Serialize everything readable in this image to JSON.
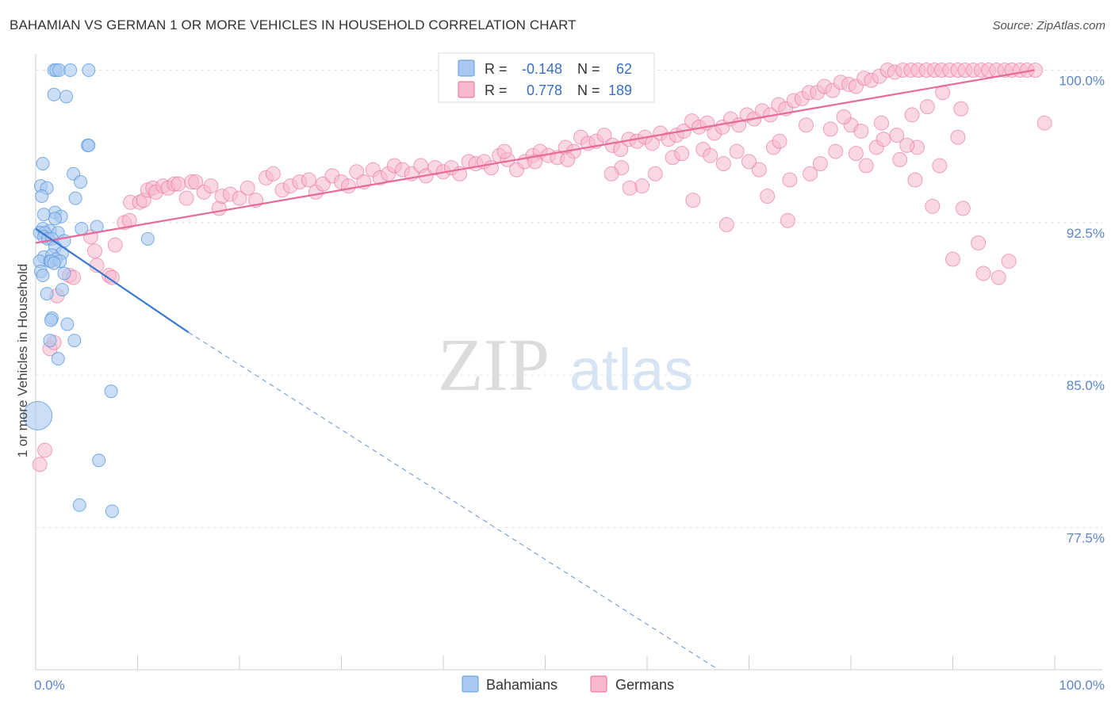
{
  "header": {
    "title": "BAHAMIAN VS GERMAN 1 OR MORE VEHICLES IN HOUSEHOLD CORRELATION CHART",
    "source": "Source: ZipAtlas.com"
  },
  "watermark": {
    "part1": "ZIP",
    "part2": "atlas"
  },
  "stats": [
    {
      "r_label": "R =",
      "r": "-0.148",
      "n_label": "N =",
      "n": "62",
      "color": "#a8c8f0"
    },
    {
      "r_label": "R =",
      "r": "0.778",
      "n_label": "N =",
      "n": "189",
      "color": "#f5b8cc"
    }
  ],
  "chart_data": {
    "type": "scatter",
    "title": "BAHAMIAN VS GERMAN 1 OR MORE VEHICLES IN HOUSEHOLD CORRELATION CHART",
    "xlabel": "",
    "ylabel": "1 or more Vehicles in Household",
    "xlim": [
      0,
      100
    ],
    "ylim": [
      70.5,
      100.8
    ],
    "x_tick_labels": [
      "0.0%",
      "100.0%"
    ],
    "y_ticks": [
      {
        "value": 77.5,
        "label": "77.5%"
      },
      {
        "value": 85.0,
        "label": "85.0%"
      },
      {
        "value": 92.5,
        "label": "92.5%"
      },
      {
        "value": 100.0,
        "label": "100.0%"
      }
    ],
    "grid": true,
    "legend_position": "bottom-center",
    "series": [
      {
        "name": "Bahamians",
        "color": "#5b9be0",
        "fill": "#a8c8f0",
        "trend": {
          "x": [
            0,
            15
          ],
          "y": [
            92.2,
            87.1
          ],
          "dashed_extension_to": [
            67,
            70.5
          ]
        },
        "points": [
          [
            1.8,
            100
          ],
          [
            2.0,
            100
          ],
          [
            2.3,
            100
          ],
          [
            3.4,
            100
          ],
          [
            5.2,
            100
          ],
          [
            1.8,
            98.8
          ],
          [
            3.0,
            98.7
          ],
          [
            5.1,
            96.3
          ],
          [
            5.2,
            96.3
          ],
          [
            0.7,
            95.4
          ],
          [
            3.7,
            94.9
          ],
          [
            4.4,
            94.5
          ],
          [
            0.5,
            94.3
          ],
          [
            1.1,
            94.2
          ],
          [
            0.6,
            93.8
          ],
          [
            3.9,
            93.7
          ],
          [
            1.9,
            93.0
          ],
          [
            2.5,
            92.8
          ],
          [
            0.8,
            92.9
          ],
          [
            1.9,
            92.7
          ],
          [
            6.0,
            92.3
          ],
          [
            4.5,
            92.2
          ],
          [
            0.7,
            92.2
          ],
          [
            1.4,
            92.1
          ],
          [
            0.4,
            92.0
          ],
          [
            0.9,
            92.0
          ],
          [
            2.2,
            92.0
          ],
          [
            0.8,
            91.8
          ],
          [
            1.2,
            91.7
          ],
          [
            2.8,
            91.6
          ],
          [
            1.6,
            91.7
          ],
          [
            11.0,
            91.7
          ],
          [
            1.9,
            91.3
          ],
          [
            2.6,
            91.0
          ],
          [
            0.8,
            90.8
          ],
          [
            1.6,
            90.9
          ],
          [
            0.4,
            90.6
          ],
          [
            1.4,
            90.6
          ],
          [
            2.0,
            90.7
          ],
          [
            1.5,
            90.6
          ],
          [
            2.4,
            90.6
          ],
          [
            1.8,
            90.5
          ],
          [
            0.5,
            90.1
          ],
          [
            2.8,
            90.0
          ],
          [
            0.7,
            89.9
          ],
          [
            2.6,
            89.2
          ],
          [
            1.1,
            89.0
          ],
          [
            1.6,
            87.8
          ],
          [
            1.5,
            87.7
          ],
          [
            3.1,
            87.5
          ],
          [
            1.4,
            86.7
          ],
          [
            3.8,
            86.7
          ],
          [
            2.2,
            85.8
          ],
          [
            7.4,
            84.2
          ],
          [
            0.2,
            83.0
          ],
          [
            6.2,
            80.8
          ],
          [
            4.3,
            78.6
          ],
          [
            7.5,
            78.3
          ]
        ],
        "large_point": [
          0.2,
          83.0
        ]
      },
      {
        "name": "Germans",
        "color": "#e8699a",
        "fill": "#f5b8cc",
        "trend": {
          "x": [
            0,
            98
          ],
          "y": [
            91.5,
            100.0
          ]
        },
        "points": [
          [
            0.4,
            80.6
          ],
          [
            0.9,
            81.3
          ],
          [
            1.4,
            86.3
          ],
          [
            1.8,
            86.6
          ],
          [
            2.1,
            88.9
          ],
          [
            3.3,
            89.9
          ],
          [
            3.7,
            89.8
          ],
          [
            7.2,
            89.9
          ],
          [
            7.5,
            89.8
          ],
          [
            6.0,
            90.4
          ],
          [
            5.8,
            91.1
          ],
          [
            7.8,
            91.4
          ],
          [
            5.4,
            91.8
          ],
          [
            8.7,
            92.5
          ],
          [
            9.2,
            92.6
          ],
          [
            9.3,
            93.5
          ],
          [
            10.2,
            93.5
          ],
          [
            10.6,
            93.6
          ],
          [
            11.0,
            94.1
          ],
          [
            11.5,
            94.2
          ],
          [
            11.8,
            94.0
          ],
          [
            12.5,
            94.3
          ],
          [
            13.0,
            94.2
          ],
          [
            13.6,
            94.4
          ],
          [
            14.0,
            94.4
          ],
          [
            14.8,
            93.7
          ],
          [
            15.3,
            94.5
          ],
          [
            15.7,
            94.5
          ],
          [
            16.5,
            94.0
          ],
          [
            17.2,
            94.3
          ],
          [
            18.0,
            93.2
          ],
          [
            18.3,
            93.8
          ],
          [
            19.1,
            93.9
          ],
          [
            20.0,
            93.7
          ],
          [
            20.8,
            94.2
          ],
          [
            21.6,
            93.6
          ],
          [
            22.6,
            94.7
          ],
          [
            23.3,
            94.9
          ],
          [
            24.2,
            94.1
          ],
          [
            25.0,
            94.3
          ],
          [
            25.9,
            94.5
          ],
          [
            26.8,
            94.6
          ],
          [
            27.5,
            94.0
          ],
          [
            28.2,
            94.4
          ],
          [
            29.1,
            94.8
          ],
          [
            30.0,
            94.5
          ],
          [
            30.7,
            94.3
          ],
          [
            31.5,
            95.0
          ],
          [
            32.2,
            94.5
          ],
          [
            33.1,
            95.1
          ],
          [
            33.8,
            94.7
          ],
          [
            34.6,
            94.9
          ],
          [
            35.2,
            95.3
          ],
          [
            36.0,
            95.1
          ],
          [
            36.9,
            94.9
          ],
          [
            37.8,
            95.3
          ],
          [
            38.3,
            94.8
          ],
          [
            39.2,
            95.2
          ],
          [
            40.0,
            95.0
          ],
          [
            40.8,
            95.2
          ],
          [
            41.6,
            94.9
          ],
          [
            42.5,
            95.5
          ],
          [
            43.2,
            95.4
          ],
          [
            44.0,
            95.5
          ],
          [
            44.7,
            95.2
          ],
          [
            45.5,
            95.8
          ],
          [
            46.3,
            95.6
          ],
          [
            47.2,
            95.1
          ],
          [
            48.0,
            95.5
          ],
          [
            48.8,
            95.8
          ],
          [
            49.5,
            96.0
          ],
          [
            50.3,
            95.8
          ],
          [
            51.2,
            95.7
          ],
          [
            52.0,
            96.2
          ],
          [
            52.8,
            96.0
          ],
          [
            53.5,
            96.7
          ],
          [
            54.2,
            96.4
          ],
          [
            55.0,
            96.5
          ],
          [
            55.8,
            96.8
          ],
          [
            56.6,
            96.3
          ],
          [
            57.4,
            96.1
          ],
          [
            58.2,
            96.6
          ],
          [
            59.0,
            96.5
          ],
          [
            59.8,
            96.7
          ],
          [
            60.5,
            96.4
          ],
          [
            61.3,
            96.9
          ],
          [
            62.1,
            96.6
          ],
          [
            62.9,
            96.8
          ],
          [
            63.6,
            97.0
          ],
          [
            64.4,
            97.5
          ],
          [
            65.1,
            97.2
          ],
          [
            65.9,
            97.4
          ],
          [
            66.6,
            96.9
          ],
          [
            67.4,
            97.2
          ],
          [
            68.2,
            97.6
          ],
          [
            69.0,
            97.3
          ],
          [
            69.8,
            97.8
          ],
          [
            70.5,
            97.6
          ],
          [
            71.3,
            98.0
          ],
          [
            72.1,
            97.8
          ],
          [
            72.9,
            98.3
          ],
          [
            73.6,
            98.1
          ],
          [
            74.4,
            98.5
          ],
          [
            75.2,
            98.6
          ],
          [
            75.9,
            98.9
          ],
          [
            76.7,
            98.9
          ],
          [
            77.4,
            99.2
          ],
          [
            78.2,
            99.0
          ],
          [
            79.0,
            99.4
          ],
          [
            79.8,
            99.3
          ],
          [
            80.5,
            99.2
          ],
          [
            81.3,
            99.6
          ],
          [
            82.0,
            99.5
          ],
          [
            82.8,
            99.7
          ],
          [
            83.6,
            100
          ],
          [
            84.3,
            99.9
          ],
          [
            85.1,
            100
          ],
          [
            85.9,
            100
          ],
          [
            86.6,
            100
          ],
          [
            87.4,
            100
          ],
          [
            88.2,
            100
          ],
          [
            88.9,
            100
          ],
          [
            89.7,
            100
          ],
          [
            90.5,
            100
          ],
          [
            91.2,
            100
          ],
          [
            92.0,
            100
          ],
          [
            92.8,
            100
          ],
          [
            93.5,
            100
          ],
          [
            94.3,
            100
          ],
          [
            95.1,
            100
          ],
          [
            95.8,
            100
          ],
          [
            96.6,
            100
          ],
          [
            97.3,
            100
          ],
          [
            98.1,
            100
          ],
          [
            99.0,
            97.4
          ],
          [
            78.5,
            96.0
          ],
          [
            80.5,
            95.9
          ],
          [
            81.5,
            95.3
          ],
          [
            82.5,
            96.2
          ],
          [
            84.5,
            96.8
          ],
          [
            86.5,
            96.2
          ],
          [
            90.5,
            96.7
          ],
          [
            91.0,
            93.2
          ],
          [
            88.0,
            93.3
          ],
          [
            85.5,
            96.3
          ],
          [
            60.8,
            94.9
          ],
          [
            62.5,
            95.7
          ],
          [
            65.5,
            96.1
          ],
          [
            67.5,
            95.4
          ],
          [
            68.8,
            96.0
          ],
          [
            71.0,
            95.1
          ],
          [
            72.4,
            96.2
          ],
          [
            74.0,
            94.6
          ],
          [
            76.0,
            94.9
          ],
          [
            77.0,
            95.4
          ],
          [
            80.0,
            97.3
          ],
          [
            83.0,
            97.4
          ],
          [
            86.0,
            97.8
          ],
          [
            87.5,
            98.2
          ],
          [
            89.0,
            98.9
          ],
          [
            90.8,
            98.1
          ],
          [
            57.5,
            95.2
          ],
          [
            56.5,
            94.9
          ],
          [
            59.5,
            94.3
          ],
          [
            52.2,
            95.6
          ],
          [
            49.0,
            95.5
          ],
          [
            46.0,
            96.0
          ],
          [
            58.3,
            94.2
          ],
          [
            63.4,
            95.9
          ],
          [
            66.2,
            95.8
          ],
          [
            70.0,
            95.5
          ],
          [
            73.0,
            96.5
          ],
          [
            75.6,
            97.3
          ],
          [
            78.0,
            97.1
          ],
          [
            79.3,
            97.7
          ],
          [
            81.0,
            97.0
          ],
          [
            83.2,
            96.6
          ],
          [
            84.8,
            95.6
          ],
          [
            86.3,
            94.6
          ],
          [
            88.7,
            95.3
          ],
          [
            90.0,
            90.7
          ],
          [
            92.5,
            91.5
          ],
          [
            93.0,
            90.0
          ],
          [
            94.5,
            89.8
          ],
          [
            95.5,
            90.6
          ],
          [
            64.5,
            93.6
          ],
          [
            67.8,
            92.4
          ],
          [
            71.8,
            93.8
          ],
          [
            73.8,
            92.6
          ]
        ]
      }
    ]
  },
  "legend": [
    {
      "name": "Bahamians",
      "fill": "#a8c8f0",
      "stroke": "#5b9be0"
    },
    {
      "name": "Germans",
      "fill": "#f5b8cc",
      "stroke": "#e8699a"
    }
  ]
}
